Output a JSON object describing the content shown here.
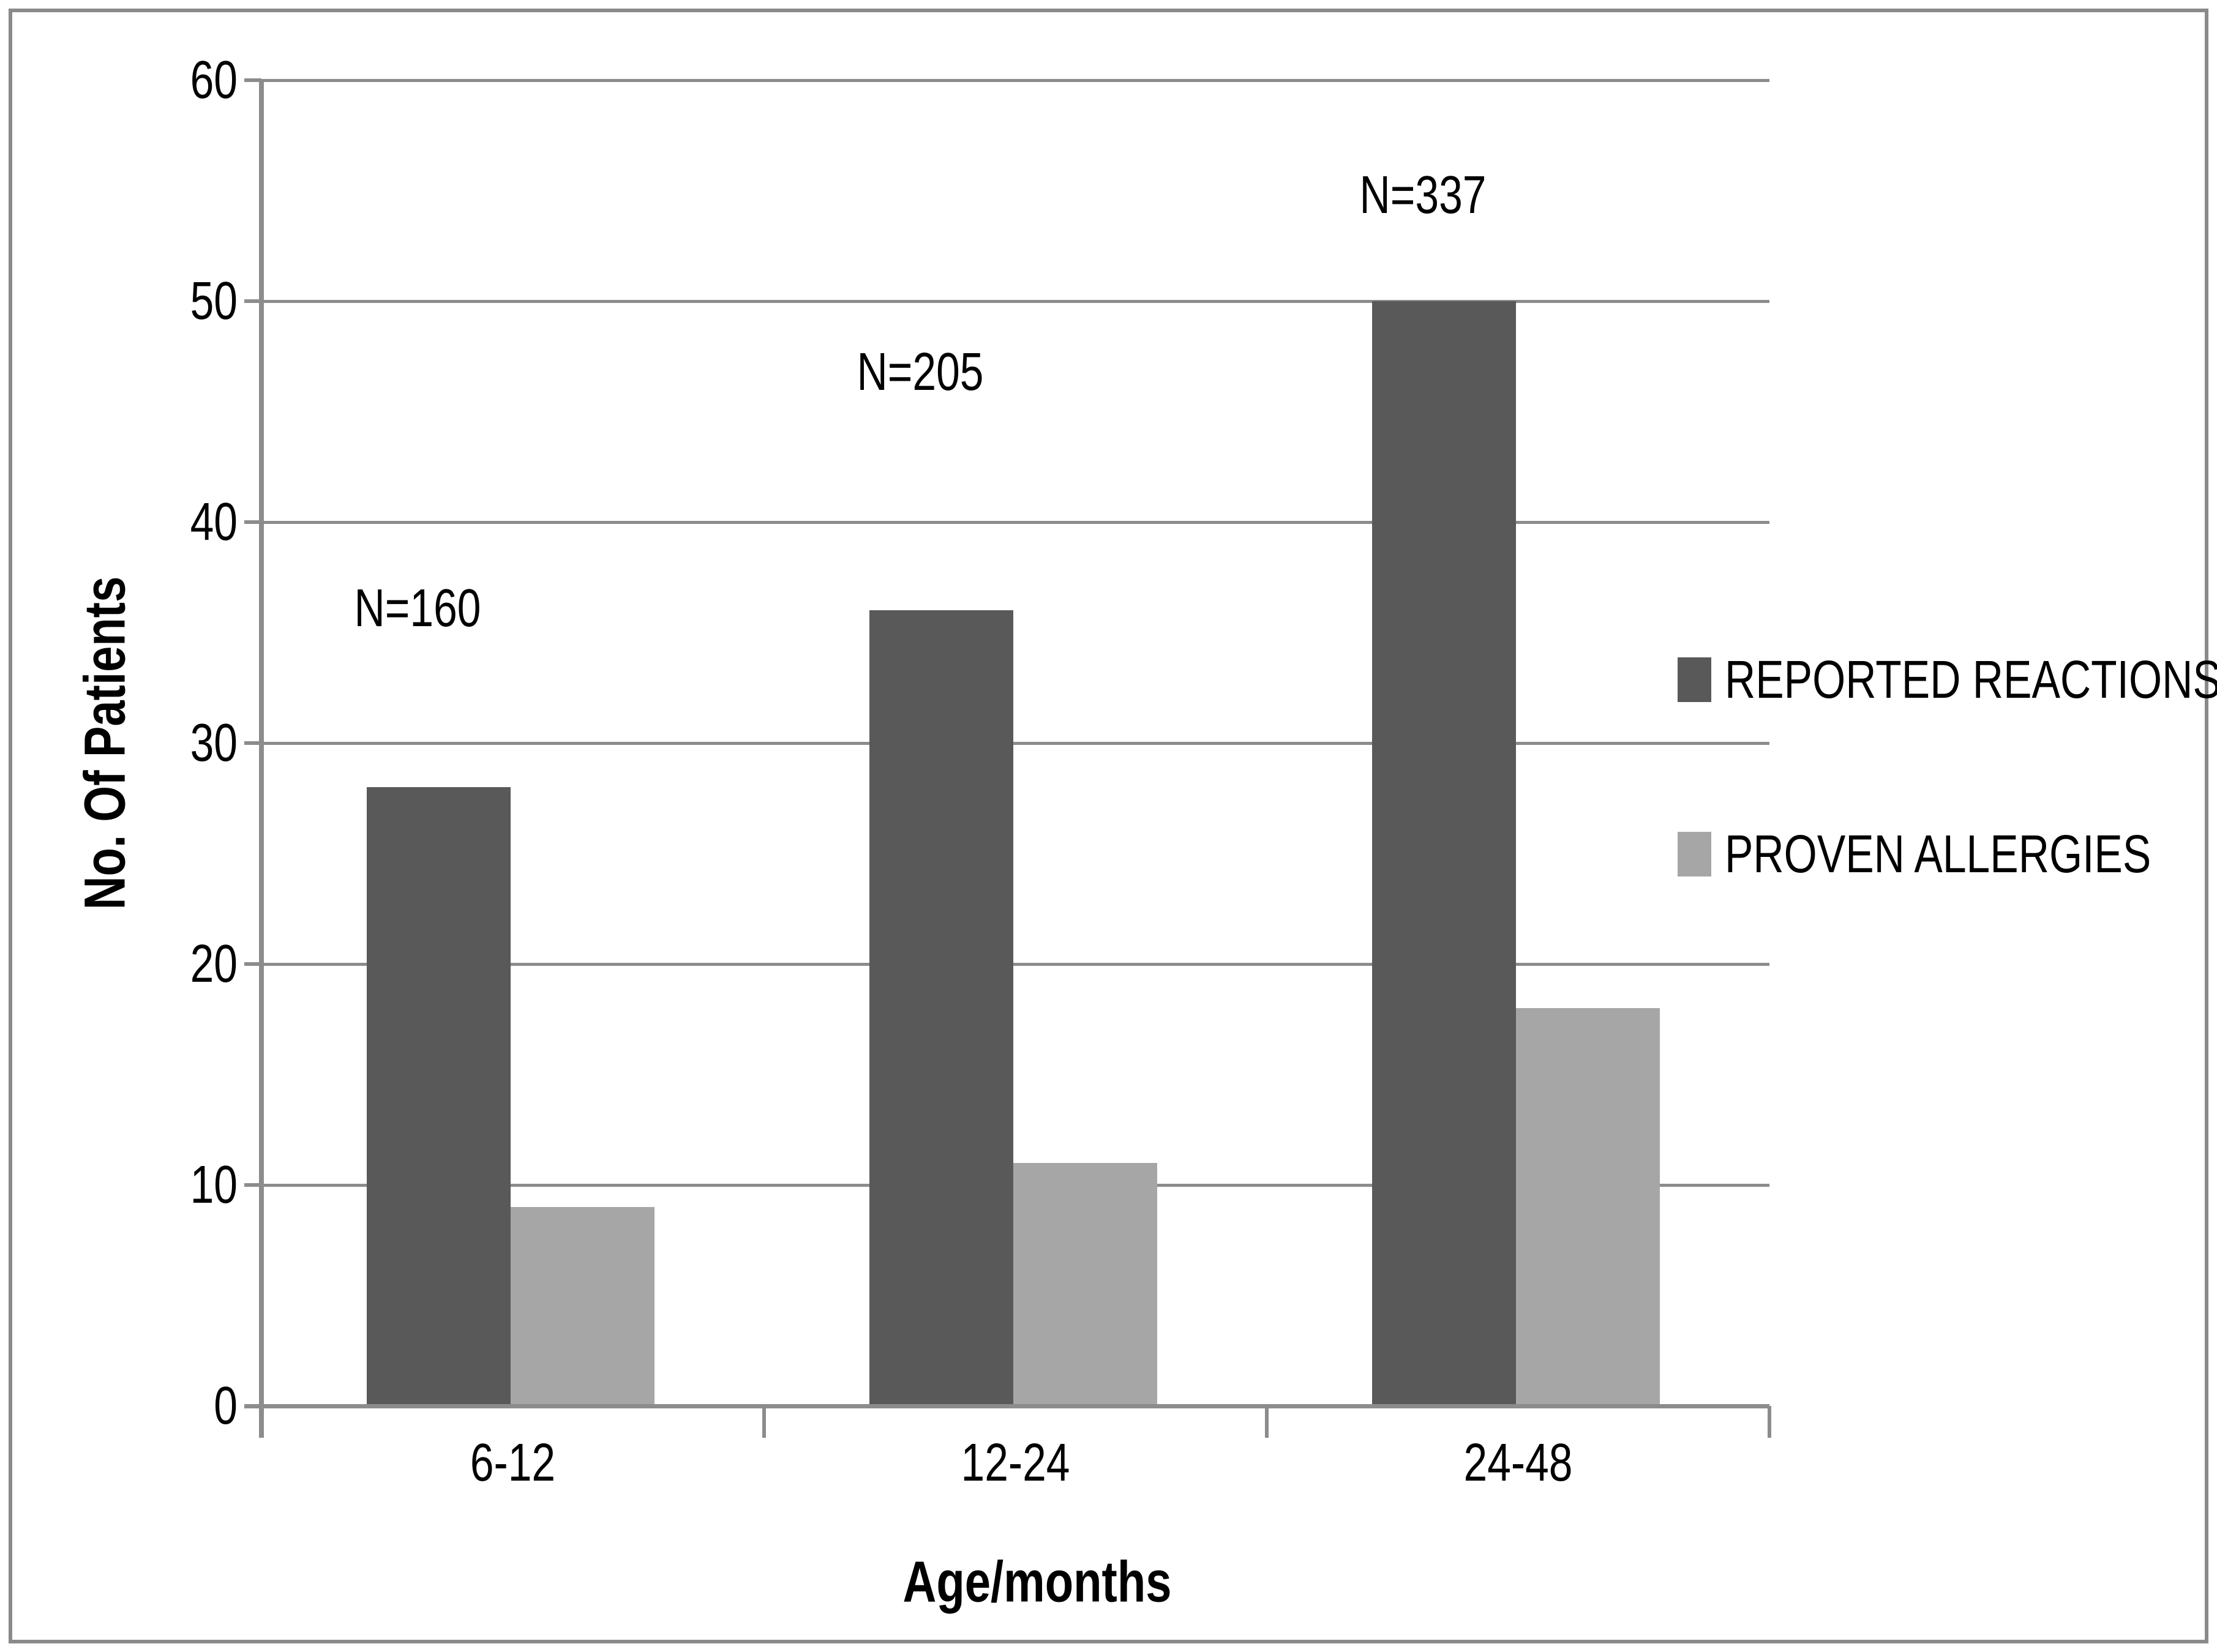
{
  "chart_data": {
    "type": "bar",
    "title": "",
    "categories": [
      "6-12",
      "12-24",
      "24-48"
    ],
    "series": [
      {
        "name": "REPORTED REACTIONS",
        "values": [
          28,
          36,
          50
        ],
        "color": "#595959"
      },
      {
        "name": "PROVEN ALLERGIES",
        "values": [
          9,
          11,
          18
        ],
        "color": "#a6a6a6"
      }
    ],
    "annotations": [
      {
        "label": "N=160",
        "category_index": 0,
        "y_value": 36.1
      },
      {
        "label": "N=205",
        "category_index": 1,
        "y_value": 46.8
      },
      {
        "label": "N=337",
        "category_index": 2,
        "y_value": 54.8
      }
    ],
    "xlabel": "Age/months",
    "ylabel": "No. Of Patients",
    "ylim": [
      0,
      60
    ],
    "yticks": [
      0,
      10,
      20,
      30,
      40,
      50,
      60
    ],
    "grid": true,
    "legend_position": "right"
  },
  "styles": {
    "background": "#ffffff",
    "frame_border_color": "#8a8a8a",
    "grid_color": "#8c8c8c",
    "axis_color": "#8c8c8c",
    "text_color": "#000000"
  }
}
